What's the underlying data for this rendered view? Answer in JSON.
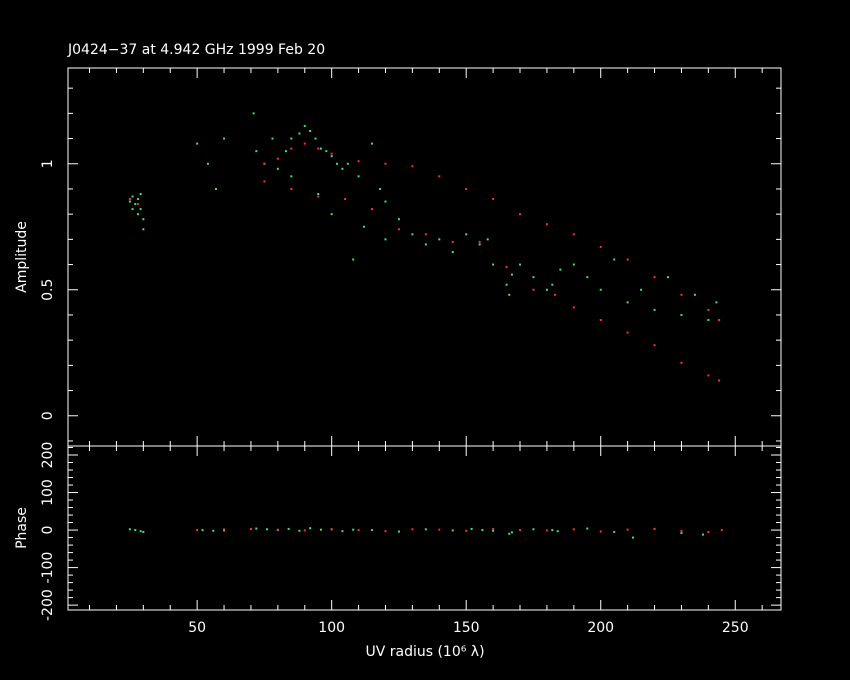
{
  "chart_data": [
    {
      "type": "scatter",
      "title": "J0424−37 at 4.942 GHz 1999 Feb 20",
      "y_label": "Amplitude",
      "xlim": [
        2,
        267
      ],
      "ylim": [
        -0.12,
        1.38
      ],
      "xticks": [
        50,
        100,
        150,
        200,
        250
      ],
      "xminorticks": [
        10,
        20,
        30,
        40,
        60,
        70,
        80,
        90,
        110,
        120,
        130,
        140,
        160,
        170,
        180,
        190,
        210,
        220,
        230,
        240,
        260
      ],
      "yticks": [
        0,
        0.5,
        1
      ],
      "yminorticks": [
        -0.1,
        0.1,
        0.2,
        0.3,
        0.4,
        0.6,
        0.7,
        0.8,
        0.9,
        1.1,
        1.2,
        1.3
      ],
      "series": [
        {
          "color": "#40e080",
          "x": [
            25,
            26,
            27,
            28,
            29,
            30,
            30,
            29,
            26,
            28,
            50,
            54,
            57,
            60,
            71,
            72,
            75,
            78,
            80,
            83,
            85,
            88,
            90,
            92,
            94,
            96,
            98,
            100,
            102,
            104,
            106,
            110,
            115,
            118,
            95,
            100,
            112,
            120,
            125,
            130,
            135,
            140,
            145,
            150,
            155,
            158,
            160,
            165,
            166,
            167,
            170,
            175,
            180,
            182,
            185,
            190,
            195,
            200,
            205,
            210,
            215,
            220,
            225,
            230,
            235,
            240,
            243,
            85,
            108,
            120
          ],
          "values": [
            0.85,
            0.87,
            0.84,
            0.86,
            0.82,
            0.78,
            0.74,
            0.88,
            0.82,
            0.8,
            1.08,
            1.0,
            0.9,
            1.1,
            1.2,
            1.05,
            1.0,
            1.1,
            0.98,
            1.05,
            1.1,
            1.12,
            1.15,
            1.13,
            1.1,
            1.06,
            1.05,
            1.03,
            1.0,
            0.98,
            1.0,
            0.95,
            1.08,
            0.9,
            0.88,
            0.8,
            0.75,
            0.7,
            0.78,
            0.72,
            0.68,
            0.7,
            0.65,
            0.72,
            0.68,
            0.7,
            0.6,
            0.52,
            0.48,
            0.56,
            0.6,
            0.55,
            0.5,
            0.52,
            0.58,
            0.6,
            0.55,
            0.5,
            0.62,
            0.45,
            0.5,
            0.42,
            0.55,
            0.4,
            0.48,
            0.38,
            0.45,
            0.95,
            0.62,
            0.85
          ]
        },
        {
          "color": "#ff3030",
          "x": [
            75,
            80,
            85,
            90,
            95,
            100,
            110,
            120,
            130,
            140,
            150,
            160,
            170,
            180,
            190,
            200,
            210,
            220,
            230,
            240,
            244,
            75,
            85,
            95,
            105,
            115,
            125,
            135,
            145,
            155,
            165,
            175,
            183,
            190,
            200,
            210,
            220,
            230,
            240,
            244,
            25,
            28
          ],
          "values": [
            1.0,
            1.02,
            1.06,
            1.08,
            1.06,
            1.04,
            1.01,
            1.0,
            0.99,
            0.95,
            0.9,
            0.86,
            0.8,
            0.76,
            0.72,
            0.67,
            0.62,
            0.55,
            0.48,
            0.42,
            0.38,
            0.93,
            0.9,
            0.87,
            0.86,
            0.82,
            0.74,
            0.72,
            0.69,
            0.69,
            0.59,
            0.5,
            0.48,
            0.43,
            0.38,
            0.33,
            0.28,
            0.21,
            0.16,
            0.14,
            0.86,
            0.84
          ]
        }
      ]
    },
    {
      "type": "scatter",
      "y_label": "Phase",
      "x_label": "UV radius  (10⁶ λ)",
      "xlim": [
        2,
        267
      ],
      "ylim": [
        -213,
        224
      ],
      "xticks": [
        50,
        100,
        150,
        200,
        250
      ],
      "xminorticks": [
        10,
        20,
        30,
        40,
        60,
        70,
        80,
        90,
        110,
        120,
        130,
        140,
        160,
        170,
        180,
        190,
        210,
        220,
        230,
        240,
        260
      ],
      "yticks": [
        -200,
        -100,
        0,
        100,
        200
      ],
      "yminorticks": [
        -180,
        -160,
        -140,
        -120,
        -80,
        -60,
        -40,
        -20,
        20,
        40,
        60,
        80,
        120,
        140,
        160,
        180,
        220
      ],
      "series": [
        {
          "color": "#40e080",
          "x": [
            25,
            27,
            29,
            30,
            52,
            56,
            60,
            72,
            76,
            80,
            84,
            88,
            92,
            96,
            100,
            104,
            108,
            115,
            125,
            135,
            145,
            152,
            156,
            160,
            166,
            167,
            175,
            182,
            184,
            195,
            205,
            212,
            220,
            230,
            238
          ],
          "values": [
            2,
            0,
            -3,
            -5,
            0,
            -2,
            1,
            4,
            2,
            0,
            3,
            -2,
            5,
            1,
            2,
            -3,
            1,
            0,
            -4,
            2,
            -1,
            3,
            0,
            -2,
            -10,
            -6,
            2,
            0,
            -3,
            4,
            -5,
            -20,
            3,
            -8,
            -12
          ]
        },
        {
          "color": "#ff3030",
          "x": [
            50,
            60,
            70,
            80,
            90,
            100,
            110,
            120,
            130,
            140,
            150,
            160,
            170,
            180,
            190,
            200,
            210,
            220,
            230,
            240,
            245
          ],
          "values": [
            0,
            -2,
            3,
            1,
            -1,
            2,
            0,
            -3,
            2,
            1,
            -2,
            3,
            0,
            -1,
            2,
            -4,
            1,
            3,
            -2,
            -5,
            0
          ]
        }
      ]
    }
  ]
}
